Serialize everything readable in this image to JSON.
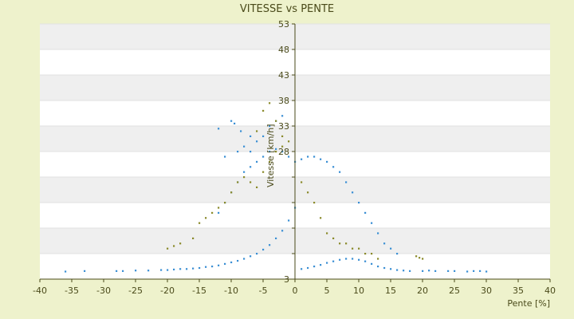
{
  "chart_data": {
    "type": "scatter",
    "title": "VITESSE vs PENTE",
    "xlabel": "Pente [%]",
    "ylabel": "Vitesse [km/h]",
    "xlim": [
      -40,
      40
    ],
    "ylim": [
      3,
      53
    ],
    "x_ticks": [
      -40,
      -35,
      -30,
      -25,
      -20,
      -15,
      -10,
      -5,
      0,
      5,
      10,
      15,
      20,
      25,
      30,
      35,
      40
    ],
    "y_ticks": [
      3,
      8,
      13,
      18,
      23,
      28,
      33,
      38,
      43,
      48,
      53
    ],
    "y_tick_labels_shown": [
      "3",
      "",
      "",
      "",
      "",
      "28",
      "33",
      "38",
      "43",
      "48",
      "53"
    ],
    "grid": "horizontal bands",
    "series": [
      {
        "color": "#3a8fd4",
        "points": [
          [
            -36,
            4.5
          ],
          [
            -33,
            4.6
          ],
          [
            -28,
            4.6
          ],
          [
            -27,
            4.6
          ],
          [
            -25,
            4.7
          ],
          [
            -23,
            4.7
          ],
          [
            -21,
            4.8
          ],
          [
            -20,
            4.8
          ],
          [
            -19,
            4.9
          ],
          [
            -18,
            5.0
          ],
          [
            -17,
            5.0
          ],
          [
            -16,
            5.1
          ],
          [
            -15,
            5.2
          ],
          [
            -14,
            5.4
          ],
          [
            -13,
            5.5
          ],
          [
            -12,
            5.7
          ],
          [
            -11,
            6.0
          ],
          [
            -10,
            6.3
          ],
          [
            -9,
            6.6
          ],
          [
            -8,
            7.0
          ],
          [
            -7,
            7.5
          ],
          [
            -6,
            8.0
          ],
          [
            -5,
            8.8
          ],
          [
            -4,
            9.7
          ],
          [
            -3,
            11.0
          ],
          [
            -2,
            12.5
          ],
          [
            -1,
            14.5
          ],
          [
            0,
            17.0
          ],
          [
            -12,
            32.5
          ],
          [
            -10,
            34
          ],
          [
            -9.5,
            33.5
          ],
          [
            -8.5,
            32
          ],
          [
            -7,
            31
          ],
          [
            -11,
            27
          ],
          [
            -9,
            28
          ],
          [
            -8,
            29
          ],
          [
            -7,
            28
          ],
          [
            -6,
            30
          ],
          [
            -5,
            31
          ],
          [
            -4,
            33
          ],
          [
            -3,
            34
          ],
          [
            -2,
            35
          ],
          [
            -12,
            16
          ],
          [
            -11,
            18
          ],
          [
            -10,
            20
          ],
          [
            -9,
            22
          ],
          [
            -8,
            24
          ],
          [
            -7,
            25
          ],
          [
            -6,
            26
          ],
          [
            -5,
            27
          ],
          [
            -4,
            28
          ],
          [
            -3,
            28.5
          ],
          [
            -2,
            28
          ],
          [
            -1,
            27
          ],
          [
            0,
            26
          ],
          [
            1,
            26.5
          ],
          [
            2,
            27
          ],
          [
            3,
            27
          ],
          [
            4,
            26.5
          ],
          [
            5,
            26
          ],
          [
            6,
            25
          ],
          [
            7,
            24
          ],
          [
            8,
            22
          ],
          [
            9,
            20
          ],
          [
            10,
            18
          ],
          [
            11,
            16
          ],
          [
            12,
            14
          ],
          [
            13,
            12
          ],
          [
            14,
            10
          ],
          [
            15,
            9
          ],
          [
            16,
            8
          ],
          [
            1,
            5.0
          ],
          [
            2,
            5.2
          ],
          [
            3,
            5.5
          ],
          [
            4,
            5.8
          ],
          [
            5,
            6.2
          ],
          [
            6,
            6.5
          ],
          [
            7,
            6.8
          ],
          [
            8,
            7.0
          ],
          [
            9,
            7.0
          ],
          [
            10,
            6.8
          ],
          [
            11,
            6.5
          ],
          [
            12,
            6.0
          ],
          [
            13,
            5.5
          ],
          [
            14,
            5.2
          ],
          [
            15,
            5.0
          ],
          [
            16,
            4.8
          ],
          [
            17,
            4.7
          ],
          [
            18,
            4.6
          ],
          [
            20,
            4.6
          ],
          [
            21,
            4.7
          ],
          [
            22,
            4.6
          ],
          [
            24,
            4.6
          ],
          [
            25,
            4.6
          ],
          [
            27,
            4.5
          ],
          [
            28,
            4.6
          ],
          [
            29,
            4.6
          ],
          [
            30,
            4.5
          ]
        ]
      },
      {
        "color": "#8a8a2a",
        "points": [
          [
            -20,
            9.0
          ],
          [
            -19,
            9.5
          ],
          [
            -18,
            10.0
          ],
          [
            -16,
            11.0
          ],
          [
            -15,
            14.0
          ],
          [
            -14,
            15.0
          ],
          [
            -13,
            16.0
          ],
          [
            -12,
            17.0
          ],
          [
            -11,
            18.0
          ],
          [
            -10,
            20.0
          ],
          [
            -9,
            22.0
          ],
          [
            -8,
            23.0
          ],
          [
            -7,
            22.0
          ],
          [
            -6,
            21.0
          ],
          [
            -5,
            24.0
          ],
          [
            -4,
            26.0
          ],
          [
            -3,
            28.0
          ],
          [
            -2,
            29.0
          ],
          [
            -1,
            30.0
          ],
          [
            -5,
            36
          ],
          [
            -4,
            37.5
          ],
          [
            -3,
            34
          ],
          [
            -6,
            32
          ],
          [
            -2,
            31
          ],
          [
            1,
            22
          ],
          [
            2,
            20
          ],
          [
            3,
            18
          ],
          [
            4,
            15
          ],
          [
            5,
            12
          ],
          [
            6,
            11
          ],
          [
            7,
            10
          ],
          [
            8,
            10
          ],
          [
            9,
            9
          ],
          [
            10,
            9
          ],
          [
            11,
            8
          ],
          [
            12,
            8
          ],
          [
            13,
            7
          ],
          [
            19,
            7.5
          ],
          [
            19.5,
            7.2
          ],
          [
            20,
            7.0
          ]
        ]
      }
    ]
  }
}
